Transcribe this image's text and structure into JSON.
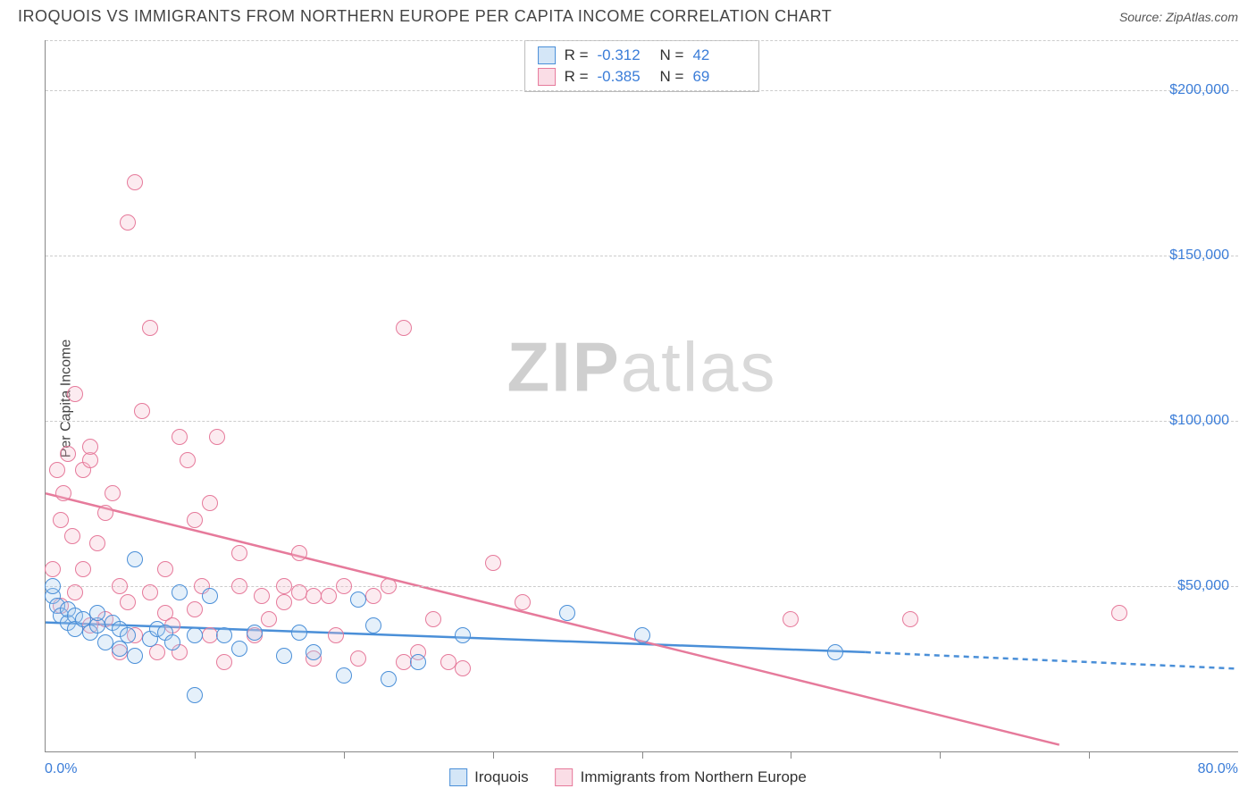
{
  "header": {
    "title": "IROQUOIS VS IMMIGRANTS FROM NORTHERN EUROPE PER CAPITA INCOME CORRELATION CHART",
    "source_prefix": "Source: ",
    "source_name": "ZipAtlas.com"
  },
  "ylabel": "Per Capita Income",
  "watermark_zip": "ZIP",
  "watermark_atlas": "atlas",
  "chart": {
    "type": "scatter",
    "xlim": [
      0,
      80
    ],
    "ylim": [
      0,
      215000
    ],
    "x_axis_start_label": "0.0%",
    "x_axis_end_label": "80.0%",
    "y_ticks": [
      {
        "value": 50000,
        "label": "$50,000"
      },
      {
        "value": 100000,
        "label": "$100,000"
      },
      {
        "value": 150000,
        "label": "$150,000"
      },
      {
        "value": 200000,
        "label": "$200,000"
      }
    ],
    "x_tick_positions": [
      10,
      20,
      30,
      40,
      50,
      60,
      70
    ],
    "grid_dash_color": "#cccccc",
    "background_color": "#ffffff",
    "point_radius": 9,
    "point_stroke_width": 1.5,
    "point_fill_opacity": 0.3,
    "series_blue": {
      "name": "Iroquois",
      "stroke": "#4a8fd8",
      "fill": "#a9cdef",
      "R": "-0.312",
      "N": "42",
      "trend": {
        "x1": 0,
        "y1": 39000,
        "x2": 55,
        "y2": 30000,
        "extend_x2": 80,
        "extend_y2": 25000,
        "width": 2.5,
        "dash": "6 5"
      },
      "points": [
        {
          "x": 0.5,
          "y": 47000
        },
        {
          "x": 0.5,
          "y": 50000
        },
        {
          "x": 0.8,
          "y": 44000
        },
        {
          "x": 1.0,
          "y": 41000
        },
        {
          "x": 1.5,
          "y": 39000
        },
        {
          "x": 1.5,
          "y": 43000
        },
        {
          "x": 2.0,
          "y": 41000
        },
        {
          "x": 2.0,
          "y": 37000
        },
        {
          "x": 2.5,
          "y": 40000
        },
        {
          "x": 3.0,
          "y": 36000
        },
        {
          "x": 3.5,
          "y": 38000
        },
        {
          "x": 3.5,
          "y": 42000
        },
        {
          "x": 4.0,
          "y": 33000
        },
        {
          "x": 4.5,
          "y": 39000
        },
        {
          "x": 5.0,
          "y": 31000
        },
        {
          "x": 5.0,
          "y": 37000
        },
        {
          "x": 5.5,
          "y": 35000
        },
        {
          "x": 6.0,
          "y": 58000
        },
        {
          "x": 6.0,
          "y": 29000
        },
        {
          "x": 7.0,
          "y": 34000
        },
        {
          "x": 7.5,
          "y": 37000
        },
        {
          "x": 8.0,
          "y": 36000
        },
        {
          "x": 8.5,
          "y": 33000
        },
        {
          "x": 9.0,
          "y": 48000
        },
        {
          "x": 10.0,
          "y": 35000
        },
        {
          "x": 10.0,
          "y": 17000
        },
        {
          "x": 11.0,
          "y": 47000
        },
        {
          "x": 12.0,
          "y": 35000
        },
        {
          "x": 13.0,
          "y": 31000
        },
        {
          "x": 14.0,
          "y": 36000
        },
        {
          "x": 16.0,
          "y": 29000
        },
        {
          "x": 17.0,
          "y": 36000
        },
        {
          "x": 18.0,
          "y": 30000
        },
        {
          "x": 20.0,
          "y": 23000
        },
        {
          "x": 21.0,
          "y": 46000
        },
        {
          "x": 22.0,
          "y": 38000
        },
        {
          "x": 23.0,
          "y": 22000
        },
        {
          "x": 25.0,
          "y": 27000
        },
        {
          "x": 28.0,
          "y": 35000
        },
        {
          "x": 35.0,
          "y": 42000
        },
        {
          "x": 40.0,
          "y": 35000
        },
        {
          "x": 53.0,
          "y": 30000
        }
      ]
    },
    "series_pink": {
      "name": "Immigrants from Northern Europe",
      "stroke": "#e67a9b",
      "fill": "#f5bccd",
      "R": "-0.385",
      "N": "69",
      "trend": {
        "x1": 0,
        "y1": 78000,
        "x2": 68,
        "y2": 2000,
        "width": 2.5
      },
      "points": [
        {
          "x": 0.5,
          "y": 55000
        },
        {
          "x": 0.8,
          "y": 85000
        },
        {
          "x": 1.0,
          "y": 44000
        },
        {
          "x": 1.0,
          "y": 70000
        },
        {
          "x": 1.2,
          "y": 78000
        },
        {
          "x": 1.5,
          "y": 90000
        },
        {
          "x": 1.8,
          "y": 65000
        },
        {
          "x": 2.0,
          "y": 108000
        },
        {
          "x": 2.0,
          "y": 48000
        },
        {
          "x": 2.5,
          "y": 85000
        },
        {
          "x": 2.5,
          "y": 55000
        },
        {
          "x": 3.0,
          "y": 88000
        },
        {
          "x": 3.0,
          "y": 38000
        },
        {
          "x": 3.0,
          "y": 92000
        },
        {
          "x": 3.5,
          "y": 63000
        },
        {
          "x": 4.0,
          "y": 72000
        },
        {
          "x": 4.0,
          "y": 40000
        },
        {
          "x": 4.5,
          "y": 78000
        },
        {
          "x": 5.0,
          "y": 30000
        },
        {
          "x": 5.0,
          "y": 50000
        },
        {
          "x": 5.5,
          "y": 160000
        },
        {
          "x": 5.5,
          "y": 45000
        },
        {
          "x": 6.0,
          "y": 172000
        },
        {
          "x": 6.0,
          "y": 35000
        },
        {
          "x": 6.5,
          "y": 103000
        },
        {
          "x": 7.0,
          "y": 48000
        },
        {
          "x": 7.0,
          "y": 128000
        },
        {
          "x": 7.5,
          "y": 30000
        },
        {
          "x": 8.0,
          "y": 42000
        },
        {
          "x": 8.0,
          "y": 55000
        },
        {
          "x": 8.5,
          "y": 38000
        },
        {
          "x": 9.0,
          "y": 95000
        },
        {
          "x": 9.0,
          "y": 30000
        },
        {
          "x": 9.5,
          "y": 88000
        },
        {
          "x": 10.0,
          "y": 43000
        },
        {
          "x": 10.5,
          "y": 50000
        },
        {
          "x": 11.0,
          "y": 35000
        },
        {
          "x": 11.0,
          "y": 75000
        },
        {
          "x": 11.5,
          "y": 95000
        },
        {
          "x": 12.0,
          "y": 27000
        },
        {
          "x": 13.0,
          "y": 50000
        },
        {
          "x": 13.0,
          "y": 60000
        },
        {
          "x": 14.0,
          "y": 35000
        },
        {
          "x": 14.5,
          "y": 47000
        },
        {
          "x": 15.0,
          "y": 40000
        },
        {
          "x": 16.0,
          "y": 50000
        },
        {
          "x": 16.0,
          "y": 45000
        },
        {
          "x": 17.0,
          "y": 48000
        },
        {
          "x": 17.0,
          "y": 60000
        },
        {
          "x": 18.0,
          "y": 47000
        },
        {
          "x": 18.0,
          "y": 28000
        },
        {
          "x": 19.0,
          "y": 47000
        },
        {
          "x": 19.5,
          "y": 35000
        },
        {
          "x": 20.0,
          "y": 50000
        },
        {
          "x": 21.0,
          "y": 28000
        },
        {
          "x": 22.0,
          "y": 47000
        },
        {
          "x": 23.0,
          "y": 50000
        },
        {
          "x": 24.0,
          "y": 128000
        },
        {
          "x": 24.0,
          "y": 27000
        },
        {
          "x": 25.0,
          "y": 30000
        },
        {
          "x": 26.0,
          "y": 40000
        },
        {
          "x": 27.0,
          "y": 27000
        },
        {
          "x": 28.0,
          "y": 25000
        },
        {
          "x": 30.0,
          "y": 57000
        },
        {
          "x": 32.0,
          "y": 45000
        },
        {
          "x": 50.0,
          "y": 40000
        },
        {
          "x": 58.0,
          "y": 40000
        },
        {
          "x": 72.0,
          "y": 42000
        },
        {
          "x": 10.0,
          "y": 70000
        }
      ]
    }
  },
  "legend_top": {
    "r_label": "R =",
    "n_label": "N ="
  },
  "legend_bottom": {
    "label_blue": "Iroquois",
    "label_pink": "Immigrants from Northern Europe"
  }
}
